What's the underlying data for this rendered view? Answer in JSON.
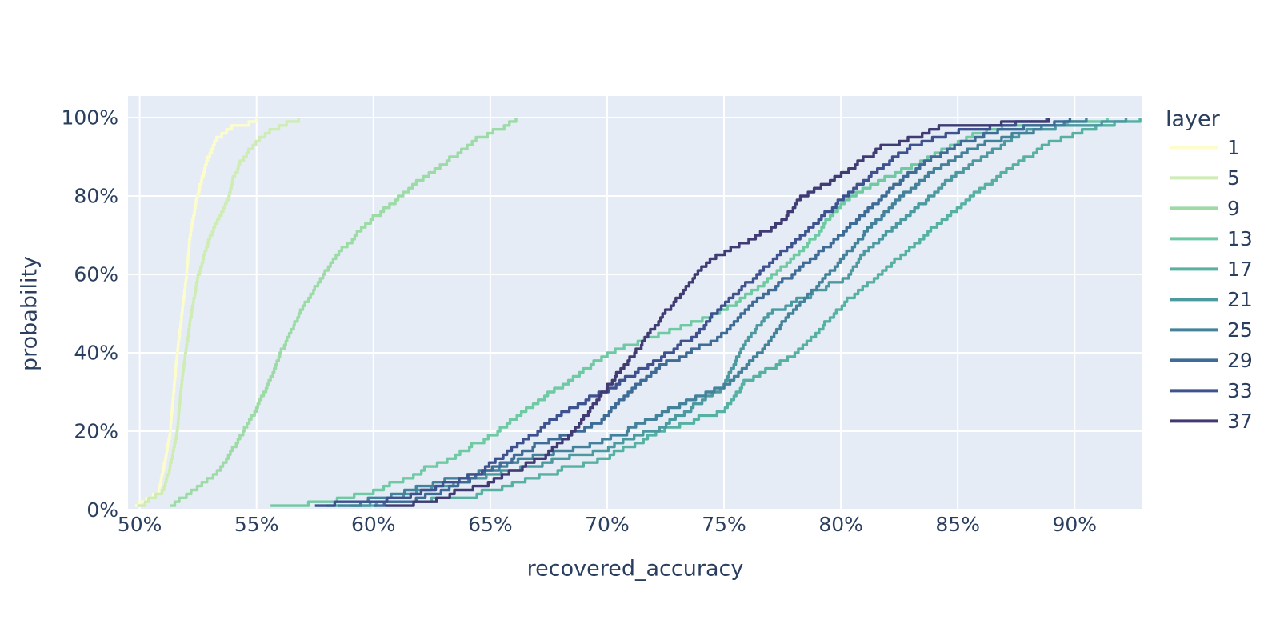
{
  "figure": {
    "background": "#ffffff",
    "plot_background": "#e5ecf6",
    "grid_color": "#ffffff",
    "text_color": "#2a3f5f"
  },
  "chart_data": {
    "type": "line",
    "subtype": "ecdf",
    "title": "",
    "xlabel": "recovered_accuracy",
    "ylabel": "probability",
    "legend_title": "layer",
    "legend_position": "right",
    "grid": true,
    "x_range": [
      49.5,
      92.9
    ],
    "y_range_pct": [
      0,
      105.5
    ],
    "x_ticks": [
      {
        "value": 50,
        "label": "50%"
      },
      {
        "value": 55,
        "label": "55%"
      },
      {
        "value": 60,
        "label": "60%"
      },
      {
        "value": 65,
        "label": "65%"
      },
      {
        "value": 70,
        "label": "70%"
      },
      {
        "value": 75,
        "label": "75%"
      },
      {
        "value": 80,
        "label": "80%"
      },
      {
        "value": 85,
        "label": "85%"
      },
      {
        "value": 90,
        "label": "90%"
      }
    ],
    "y_ticks": [
      {
        "value": 0,
        "label": "0%"
      },
      {
        "value": 20,
        "label": "20%"
      },
      {
        "value": 40,
        "label": "40%"
      },
      {
        "value": 60,
        "label": "60%"
      },
      {
        "value": 80,
        "label": "80%"
      },
      {
        "value": 100,
        "label": "100%"
      }
    ],
    "series_note": "quantiles are [probability_pct, recovered_accuracy_pct] control points of each empirical CDF (~100 samples per layer)",
    "series": [
      {
        "name": "1",
        "color": "#fdfdcc",
        "quantiles": [
          [
            1,
            49.8
          ],
          [
            5,
            50.8
          ],
          [
            10,
            51.0
          ],
          [
            20,
            51.3
          ],
          [
            30,
            51.45
          ],
          [
            40,
            51.6
          ],
          [
            50,
            51.8
          ],
          [
            60,
            52.0
          ],
          [
            70,
            52.15
          ],
          [
            80,
            52.45
          ],
          [
            90,
            52.9
          ],
          [
            95,
            53.3
          ],
          [
            98,
            54.0
          ],
          [
            100,
            55.0
          ]
        ]
      },
      {
        "name": "5",
        "color": "#ceecb3",
        "quantiles": [
          [
            1,
            49.9
          ],
          [
            5,
            51.0
          ],
          [
            10,
            51.25
          ],
          [
            20,
            51.6
          ],
          [
            30,
            51.75
          ],
          [
            40,
            51.95
          ],
          [
            50,
            52.2
          ],
          [
            60,
            52.5
          ],
          [
            70,
            53.0
          ],
          [
            80,
            53.8
          ],
          [
            85,
            54.0
          ],
          [
            90,
            54.4
          ],
          [
            95,
            55.1
          ],
          [
            98,
            55.8
          ],
          [
            100,
            56.8
          ]
        ]
      },
      {
        "name": "9",
        "color": "#9cdba5",
        "quantiles": [
          [
            1,
            51.3
          ],
          [
            5,
            52.3
          ],
          [
            10,
            53.3
          ],
          [
            15,
            53.9
          ],
          [
            20,
            54.4
          ],
          [
            25,
            54.9
          ],
          [
            30,
            55.3
          ],
          [
            35,
            55.7
          ],
          [
            40,
            56.0
          ],
          [
            45,
            56.4
          ],
          [
            50,
            56.8
          ],
          [
            55,
            57.3
          ],
          [
            60,
            57.8
          ],
          [
            65,
            58.4
          ],
          [
            70,
            59.2
          ],
          [
            75,
            60.0
          ],
          [
            80,
            61.1
          ],
          [
            85,
            62.1
          ],
          [
            90,
            63.3
          ],
          [
            95,
            64.5
          ],
          [
            100,
            66.1
          ]
        ]
      },
      {
        "name": "13",
        "color": "#6fc9a3",
        "quantiles": [
          [
            1,
            55.6
          ],
          [
            3,
            58.2
          ],
          [
            5,
            60.0
          ],
          [
            8,
            61.3
          ],
          [
            11,
            62.3
          ],
          [
            14,
            63.4
          ],
          [
            17,
            64.3
          ],
          [
            20,
            65.3
          ],
          [
            26,
            66.5
          ],
          [
            33,
            68.3
          ],
          [
            40,
            69.9
          ],
          [
            47,
            73.0
          ],
          [
            52,
            75.3
          ],
          [
            57,
            76.5
          ],
          [
            62,
            77.5
          ],
          [
            70,
            78.9
          ],
          [
            75,
            79.5
          ],
          [
            80,
            80.3
          ],
          [
            85,
            81.8
          ],
          [
            89,
            83.4
          ],
          [
            95,
            85.2
          ],
          [
            98,
            87.0
          ],
          [
            99,
            89.0
          ],
          [
            100,
            91.4
          ]
        ]
      },
      {
        "name": "17",
        "color": "#56b1a3",
        "quantiles": [
          [
            1,
            58.0
          ],
          [
            4,
            64.0
          ],
          [
            8,
            66.5
          ],
          [
            14,
            70.0
          ],
          [
            20,
            72.2
          ],
          [
            26,
            75.0
          ],
          [
            33,
            75.9
          ],
          [
            40,
            78.0
          ],
          [
            47,
            79.2
          ],
          [
            54,
            80.3
          ],
          [
            62,
            82.0
          ],
          [
            70,
            83.5
          ],
          [
            80,
            85.5
          ],
          [
            88,
            87.3
          ],
          [
            94,
            89.0
          ],
          [
            97,
            90.5
          ],
          [
            100,
            92.8
          ]
        ]
      },
      {
        "name": "21",
        "color": "#4c99a0",
        "quantiles": [
          [
            1,
            59.0
          ],
          [
            5,
            62.0
          ],
          [
            10,
            65.5
          ],
          [
            16,
            70.0
          ],
          [
            22,
            72.5
          ],
          [
            32,
            75.0
          ],
          [
            42,
            75.8
          ],
          [
            50,
            76.8
          ],
          [
            60,
            80.3
          ],
          [
            66,
            81.0
          ],
          [
            76,
            83.0
          ],
          [
            84,
            84.5
          ],
          [
            92,
            86.5
          ],
          [
            97,
            88.0
          ],
          [
            100,
            92.2
          ]
        ]
      },
      {
        "name": "25",
        "color": "#44829b",
        "quantiles": [
          [
            1,
            58.5
          ],
          [
            5,
            61.5
          ],
          [
            10,
            64.5
          ],
          [
            14,
            67.0
          ],
          [
            18,
            70.0
          ],
          [
            24,
            72.0
          ],
          [
            32,
            75.0
          ],
          [
            40,
            76.5
          ],
          [
            48,
            77.5
          ],
          [
            56,
            78.8
          ],
          [
            64,
            80.0
          ],
          [
            72,
            81.2
          ],
          [
            80,
            82.5
          ],
          [
            88,
            84.2
          ],
          [
            94,
            86.2
          ],
          [
            97,
            88.0
          ],
          [
            100,
            90.5
          ]
        ]
      },
      {
        "name": "29",
        "color": "#3e6c96",
        "quantiles": [
          [
            1,
            60.0
          ],
          [
            5,
            63.0
          ],
          [
            12,
            65.5
          ],
          [
            17,
            67.0
          ],
          [
            23,
            69.8
          ],
          [
            28,
            70.5
          ],
          [
            36,
            72.0
          ],
          [
            44,
            74.8
          ],
          [
            52,
            76.0
          ],
          [
            60,
            77.8
          ],
          [
            68,
            79.5
          ],
          [
            76,
            81.0
          ],
          [
            84,
            82.5
          ],
          [
            90,
            83.8
          ],
          [
            96,
            86.0
          ],
          [
            100,
            89.8
          ]
        ]
      },
      {
        "name": "33",
        "color": "#3e528f",
        "quantiles": [
          [
            1,
            57.5
          ],
          [
            4,
            61.5
          ],
          [
            10,
            64.5
          ],
          [
            18,
            66.5
          ],
          [
            26,
            68.3
          ],
          [
            31,
            70.0
          ],
          [
            38,
            72.0
          ],
          [
            46,
            74.0
          ],
          [
            50,
            74.5
          ],
          [
            58,
            76.0
          ],
          [
            66,
            77.5
          ],
          [
            74,
            79.0
          ],
          [
            82,
            80.5
          ],
          [
            88,
            81.8
          ],
          [
            93,
            83.0
          ],
          [
            97,
            85.0
          ],
          [
            99,
            87.0
          ],
          [
            100,
            88.8
          ]
        ]
      },
      {
        "name": "37",
        "color": "#403c73",
        "quantiles": [
          [
            1,
            60.5
          ],
          [
            3,
            62.5
          ],
          [
            7,
            64.8
          ],
          [
            14,
            67.3
          ],
          [
            20,
            68.5
          ],
          [
            26,
            69.3
          ],
          [
            34,
            70.3
          ],
          [
            42,
            71.4
          ],
          [
            50,
            72.4
          ],
          [
            58,
            73.5
          ],
          [
            62,
            74.0
          ],
          [
            66,
            75.0
          ],
          [
            70,
            76.3
          ],
          [
            74,
            77.5
          ],
          [
            80,
            78.3
          ],
          [
            87,
            80.3
          ],
          [
            93,
            81.8
          ],
          [
            96,
            83.3
          ],
          [
            98,
            84.5
          ],
          [
            99,
            86.8
          ],
          [
            100,
            88.9
          ]
        ]
      }
    ]
  }
}
